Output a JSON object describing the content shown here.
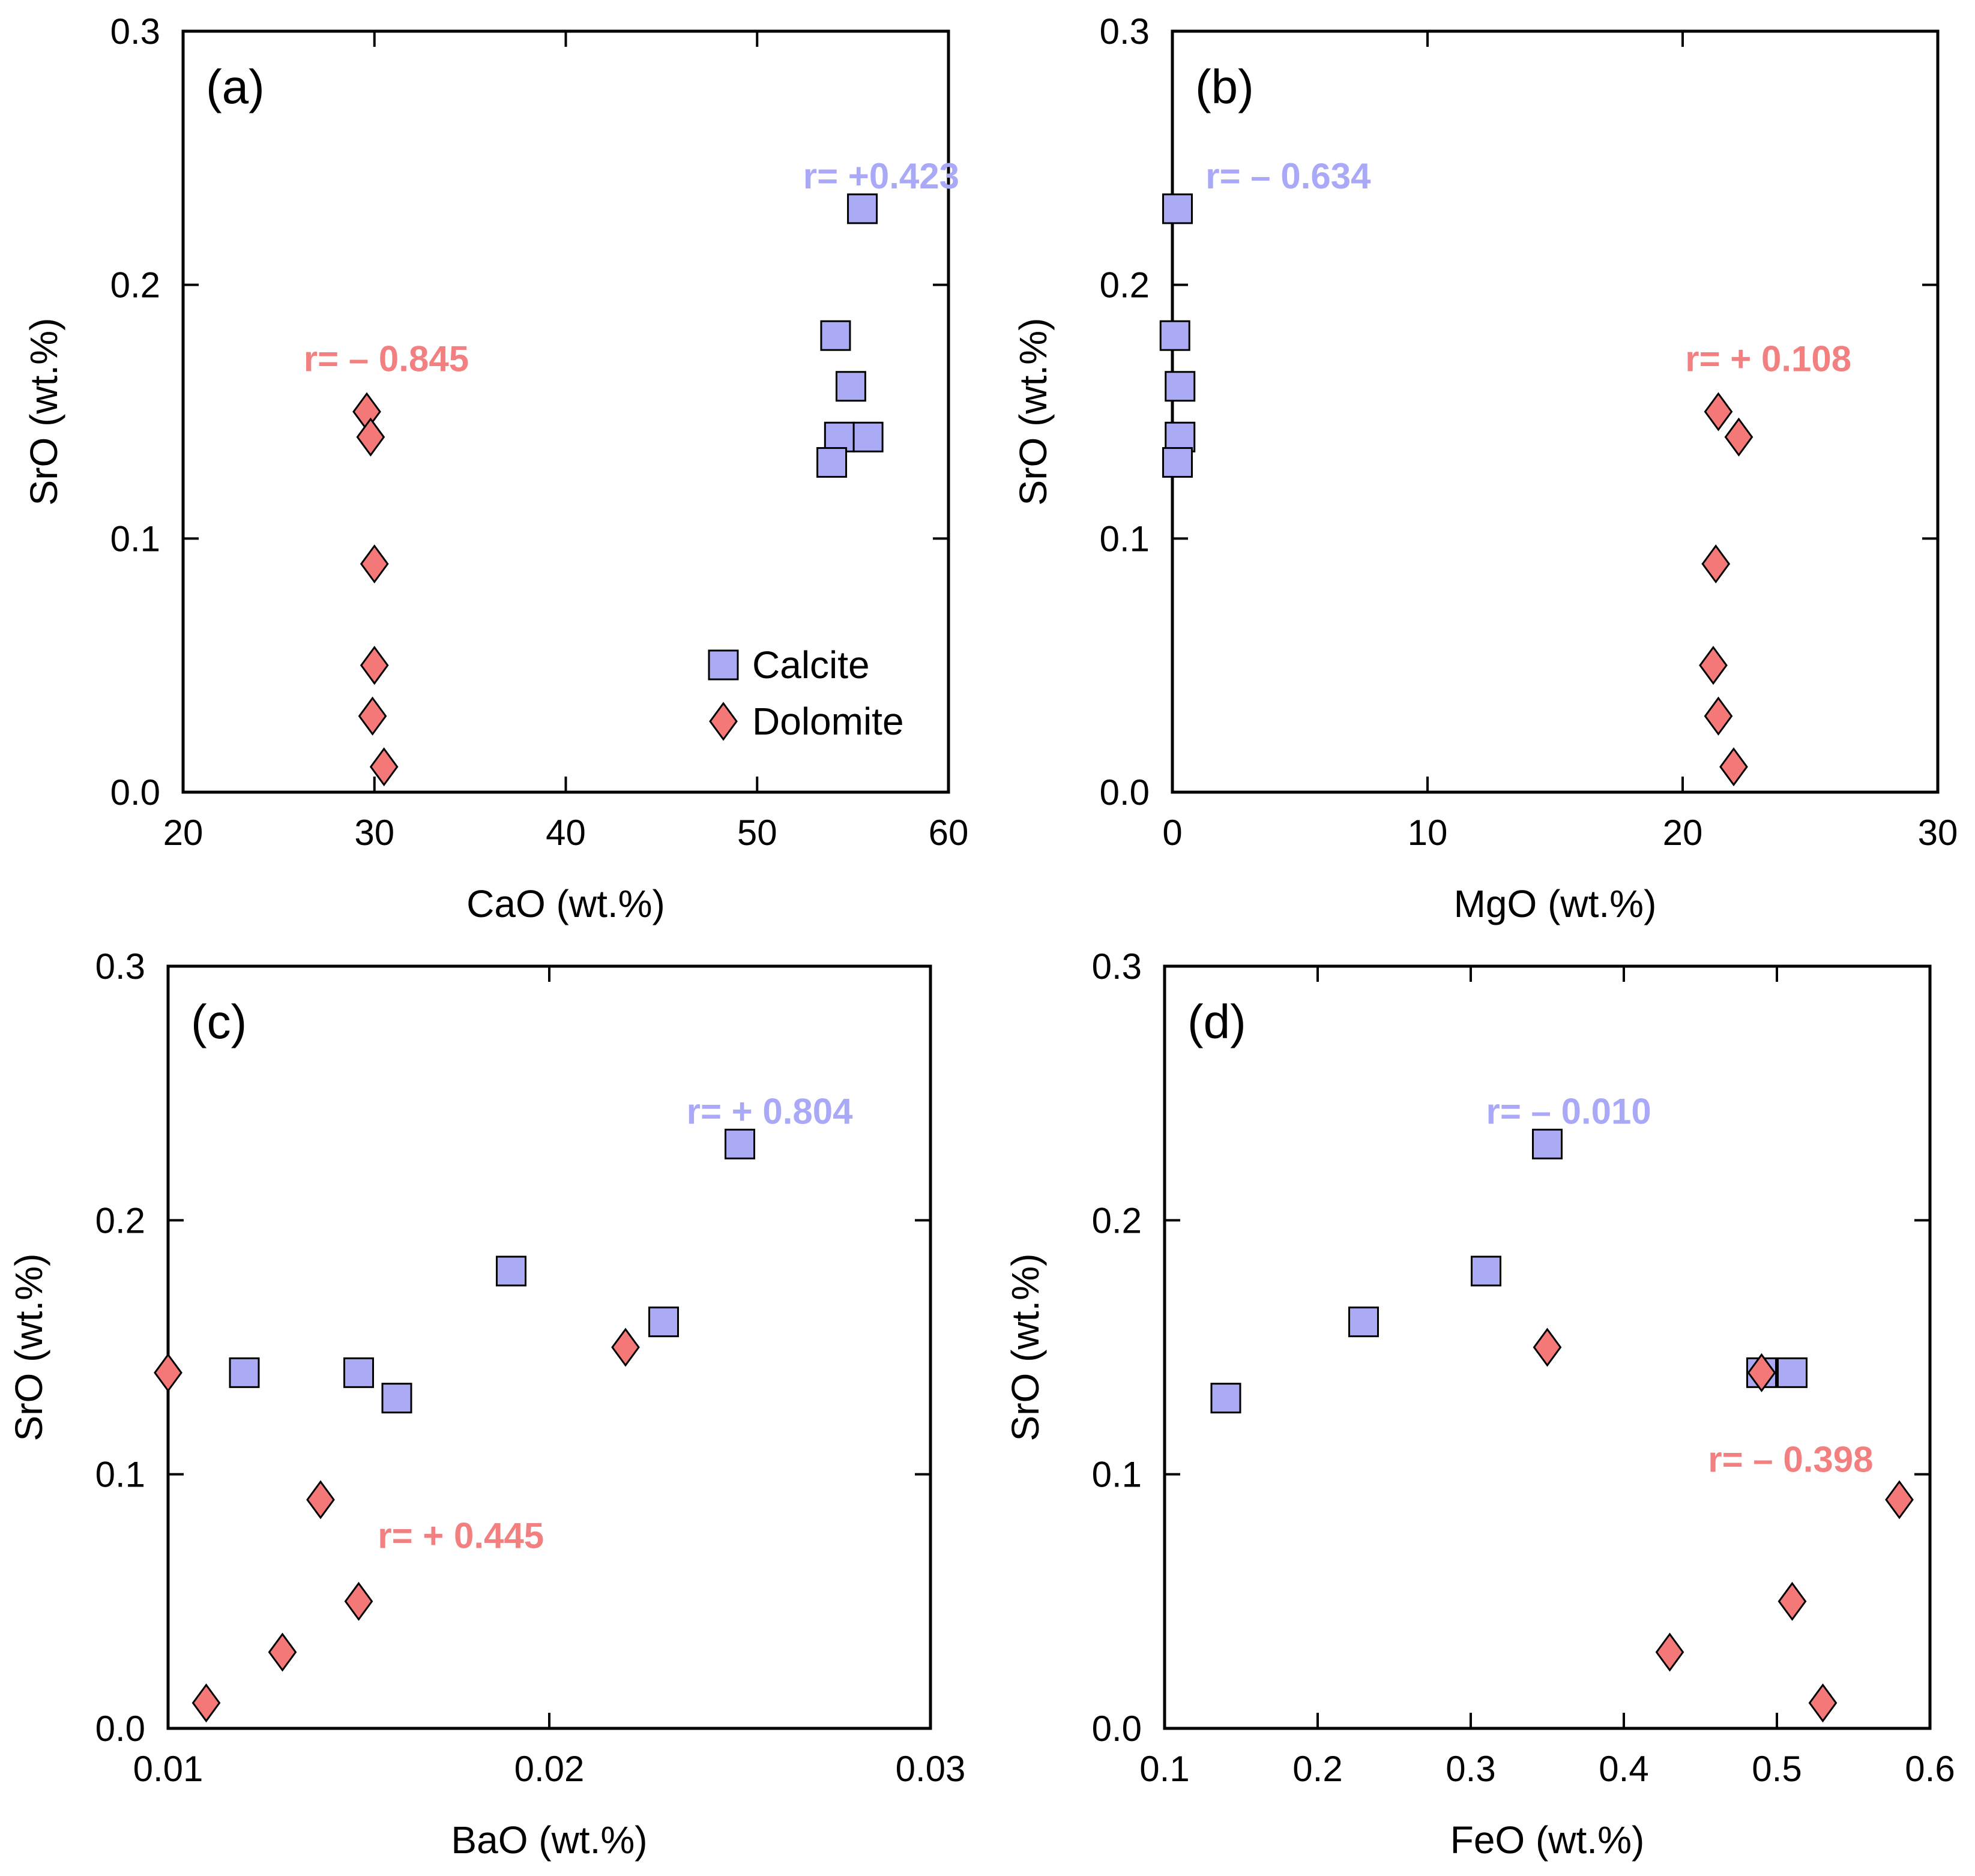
{
  "colors": {
    "calcite": "#aaaaf5",
    "dolomite": "#f57878",
    "calcite_label": "#a9a9f7",
    "dolomite_label": "#f28080",
    "marker_stroke": "#000000"
  },
  "legend": {
    "calcite": "Calcite",
    "dolomite": "Dolomite",
    "placement": "bottom-right of panel (a)"
  },
  "chart_data": [
    {
      "type": "scatter",
      "panel_label": "(a)",
      "xlabel": "CaO (wt.%)",
      "ylabel": "SrO (wt.%)",
      "xlim": [
        20,
        60
      ],
      "ylim": [
        0.0,
        0.3
      ],
      "xticks": [
        "20",
        "30",
        "40",
        "50",
        "60"
      ],
      "yticks": [
        "0.0",
        "0.1",
        "0.2",
        "0.3"
      ],
      "grid": false,
      "series": [
        {
          "name": "Calcite",
          "marker": "square",
          "x": [
            55.5,
            54.1,
            54.9,
            54.3,
            55.8,
            53.9
          ],
          "y": [
            0.23,
            0.18,
            0.16,
            0.14,
            0.14,
            0.13
          ]
        },
        {
          "name": "Dolomite",
          "marker": "diamond",
          "x": [
            29.6,
            29.8,
            30.0,
            30.0,
            29.9,
            30.5
          ],
          "y": [
            0.15,
            0.14,
            0.09,
            0.05,
            0.03,
            0.01
          ]
        }
      ],
      "annotations": [
        {
          "text": "r= +0.423",
          "series": "Calcite",
          "x": 52.4,
          "y": 0.238
        },
        {
          "text": "r= – 0.845",
          "series": "Dolomite",
          "x": 26.3,
          "y": 0.166
        }
      ]
    },
    {
      "type": "scatter",
      "panel_label": "(b)",
      "xlabel": "MgO (wt.%)",
      "ylabel": "SrO (wt.%)",
      "xlim": [
        0,
        30
      ],
      "ylim": [
        0.0,
        0.3
      ],
      "xticks": [
        "0",
        "10",
        "20",
        "30"
      ],
      "yticks": [
        "0.0",
        "0.1",
        "0.2",
        "0.3"
      ],
      "grid": false,
      "series": [
        {
          "name": "Calcite",
          "marker": "square",
          "x": [
            0.2,
            0.1,
            0.3,
            0.3,
            0.2
          ],
          "y": [
            0.23,
            0.18,
            0.16,
            0.14,
            0.13
          ]
        },
        {
          "name": "Dolomite",
          "marker": "diamond",
          "x": [
            21.4,
            22.2,
            21.3,
            21.2,
            21.4,
            22.0
          ],
          "y": [
            0.15,
            0.14,
            0.09,
            0.05,
            0.03,
            0.01
          ]
        }
      ],
      "annotations": [
        {
          "text": "r= – 0.634",
          "series": "Calcite",
          "x": 1.3,
          "y": 0.238
        },
        {
          "text": "r= + 0.108",
          "series": "Dolomite",
          "x": 20.1,
          "y": 0.166
        }
      ]
    },
    {
      "type": "scatter",
      "panel_label": "(c)",
      "xlabel": "BaO (wt.%)",
      "ylabel": "SrO (wt.%)",
      "xlim": [
        0.01,
        0.03
      ],
      "ylim": [
        0.0,
        0.3
      ],
      "xticks": [
        "0.01",
        "0.02",
        "0.03"
      ],
      "yticks": [
        "0.0",
        "0.1",
        "0.2",
        "0.3"
      ],
      "grid": false,
      "series": [
        {
          "name": "Calcite",
          "marker": "square",
          "x": [
            0.025,
            0.019,
            0.023,
            0.012,
            0.015,
            0.016
          ],
          "y": [
            0.23,
            0.18,
            0.16,
            0.14,
            0.14,
            0.13
          ]
        },
        {
          "name": "Dolomite",
          "marker": "diamond",
          "x": [
            0.01,
            0.022,
            0.014,
            0.015,
            0.013,
            0.011
          ],
          "y": [
            0.14,
            0.15,
            0.09,
            0.05,
            0.03,
            0.01
          ]
        }
      ],
      "annotations": [
        {
          "text": "r= + 0.804",
          "series": "Calcite",
          "x": 0.0236,
          "y": 0.238
        },
        {
          "text": "r= + 0.445",
          "series": "Dolomite",
          "x": 0.0155,
          "y": 0.071
        }
      ]
    },
    {
      "type": "scatter",
      "panel_label": "(d)",
      "xlabel": "FeO (wt.%)",
      "ylabel": "SrO (wt.%)",
      "xlim": [
        0.1,
        0.6
      ],
      "ylim": [
        0.0,
        0.3
      ],
      "xticks": [
        "0.1",
        "0.2",
        "0.3",
        "0.4",
        "0.5",
        "0.6"
      ],
      "yticks": [
        "0.0",
        "0.1",
        "0.2",
        "0.3"
      ],
      "grid": false,
      "series": [
        {
          "name": "Calcite",
          "marker": "square",
          "x": [
            0.35,
            0.31,
            0.23,
            0.49,
            0.51,
            0.14
          ],
          "y": [
            0.23,
            0.18,
            0.16,
            0.14,
            0.14,
            0.13
          ]
        },
        {
          "name": "Dolomite",
          "marker": "diamond",
          "x": [
            0.35,
            0.49,
            0.58,
            0.51,
            0.43,
            0.53
          ],
          "y": [
            0.15,
            0.14,
            0.09,
            0.05,
            0.03,
            0.01
          ]
        }
      ],
      "annotations": [
        {
          "text": "r= – 0.010",
          "series": "Calcite",
          "x": 0.31,
          "y": 0.238
        },
        {
          "text": "r= – 0.398",
          "series": "Dolomite",
          "x": 0.455,
          "y": 0.101
        }
      ]
    }
  ]
}
